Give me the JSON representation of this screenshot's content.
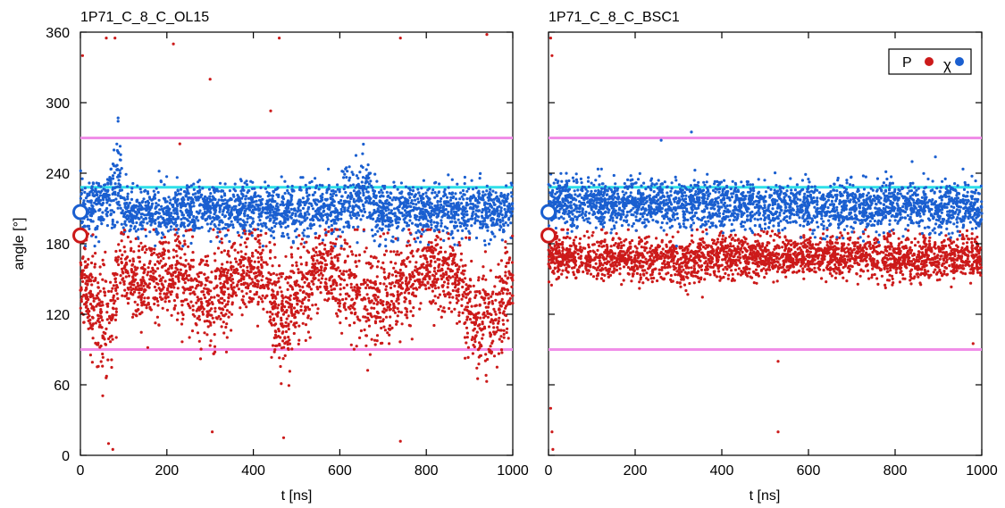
{
  "chart_data": [
    {
      "type": "scatter",
      "title": "1P71_C_8_C_OL15",
      "xlabel": "t [ns]",
      "ylabel": "angle [°]",
      "xlim": [
        0,
        1000
      ],
      "ylim": [
        0,
        360
      ],
      "xticks": [
        "0",
        "200",
        "400",
        "600",
        "800",
        "1000"
      ],
      "yticks": [
        "0",
        "60",
        "120",
        "180",
        "240",
        "300",
        "360"
      ],
      "reference_lines": [
        {
          "y": 270,
          "color": "#f08ee8"
        },
        {
          "y": 228,
          "color": "#2fe0e8"
        },
        {
          "y": 90,
          "color": "#f08ee8"
        }
      ],
      "axis_markers": [
        {
          "series": "χ",
          "y": 207,
          "color": "#1a5fd0"
        },
        {
          "series": "P",
          "y": 187,
          "color": "#cc1a1a"
        }
      ],
      "series": [
        {
          "name": "χ",
          "color": "#1a5fd0",
          "x": [
            0,
            30,
            60,
            80,
            90,
            100,
            150,
            200,
            300,
            400,
            460,
            500,
            600,
            650,
            660,
            680,
            700,
            800,
            900,
            1000
          ],
          "mean": [
            212,
            212,
            214,
            230,
            240,
            205,
            207,
            207,
            208,
            209,
            208,
            209,
            209,
            226,
            230,
            208,
            208,
            208,
            208,
            208
          ],
          "spread": [
            22,
            22,
            22,
            38,
            45,
            22,
            22,
            22,
            22,
            22,
            22,
            22,
            22,
            30,
            32,
            22,
            22,
            22,
            22,
            22
          ]
        },
        {
          "name": "P",
          "color": "#cc1a1a",
          "x": [
            0,
            40,
            70,
            90,
            130,
            180,
            250,
            300,
            400,
            470,
            500,
            560,
            620,
            700,
            800,
            880,
            920,
            960,
            1000
          ],
          "mean": [
            150,
            125,
            105,
            165,
            145,
            155,
            150,
            130,
            160,
            115,
            135,
            160,
            145,
            130,
            160,
            150,
            110,
            120,
            150
          ],
          "spread": [
            40,
            50,
            55,
            25,
            40,
            35,
            40,
            45,
            30,
            50,
            40,
            30,
            40,
            45,
            30,
            35,
            45,
            45,
            35
          ],
          "outliers": [
            [
              5,
              340
            ],
            [
              60,
              355
            ],
            [
              80,
              355
            ],
            [
              215,
              350
            ],
            [
              300,
              320
            ],
            [
              440,
              293
            ],
            [
              460,
              355
            ],
            [
              740,
              355
            ],
            [
              940,
              358
            ],
            [
              230,
              265
            ],
            [
              65,
              10
            ],
            [
              75,
              5
            ],
            [
              305,
              20
            ],
            [
              470,
              15
            ],
            [
              740,
              12
            ]
          ]
        }
      ]
    },
    {
      "type": "scatter",
      "title": "1P71_C_8_C_BSC1",
      "xlabel": "t [ns]",
      "ylabel": "",
      "xlim": [
        0,
        1000
      ],
      "ylim": [
        0,
        360
      ],
      "xticks": [
        "0",
        "200",
        "400",
        "600",
        "800",
        "1000"
      ],
      "yticks": [],
      "legend": {
        "position": "top-right",
        "entries": [
          "P",
          "χ"
        ]
      },
      "reference_lines": [
        {
          "y": 270,
          "color": "#f08ee8"
        },
        {
          "y": 228,
          "color": "#2fe0e8"
        },
        {
          "y": 90,
          "color": "#f08ee8"
        }
      ],
      "axis_markers": [
        {
          "series": "χ",
          "y": 207,
          "color": "#1a5fd0"
        },
        {
          "series": "P",
          "y": 187,
          "color": "#cc1a1a"
        }
      ],
      "series": [
        {
          "name": "P",
          "color": "#cc1a1a",
          "x": [
            0,
            100,
            200,
            300,
            400,
            500,
            600,
            700,
            800,
            900,
            1000
          ],
          "mean": [
            168,
            168,
            168,
            165,
            168,
            168,
            170,
            170,
            168,
            168,
            170
          ],
          "spread": [
            18,
            18,
            18,
            20,
            18,
            18,
            16,
            16,
            20,
            18,
            16
          ],
          "outliers": [
            [
              5,
              355
            ],
            [
              8,
              340
            ],
            [
              5,
              40
            ],
            [
              8,
              20
            ],
            [
              10,
              5
            ],
            [
              530,
              80
            ],
            [
              530,
              20
            ],
            [
              980,
              95
            ]
          ]
        },
        {
          "name": "χ",
          "color": "#1a5fd0",
          "x": [
            0,
            200,
            400,
            600,
            800,
            1000
          ],
          "mean": [
            215,
            214,
            214,
            212,
            212,
            210
          ],
          "spread": [
            20,
            20,
            20,
            20,
            20,
            20
          ],
          "outliers": [
            [
              260,
              268
            ],
            [
              330,
              275
            ]
          ]
        }
      ]
    }
  ]
}
